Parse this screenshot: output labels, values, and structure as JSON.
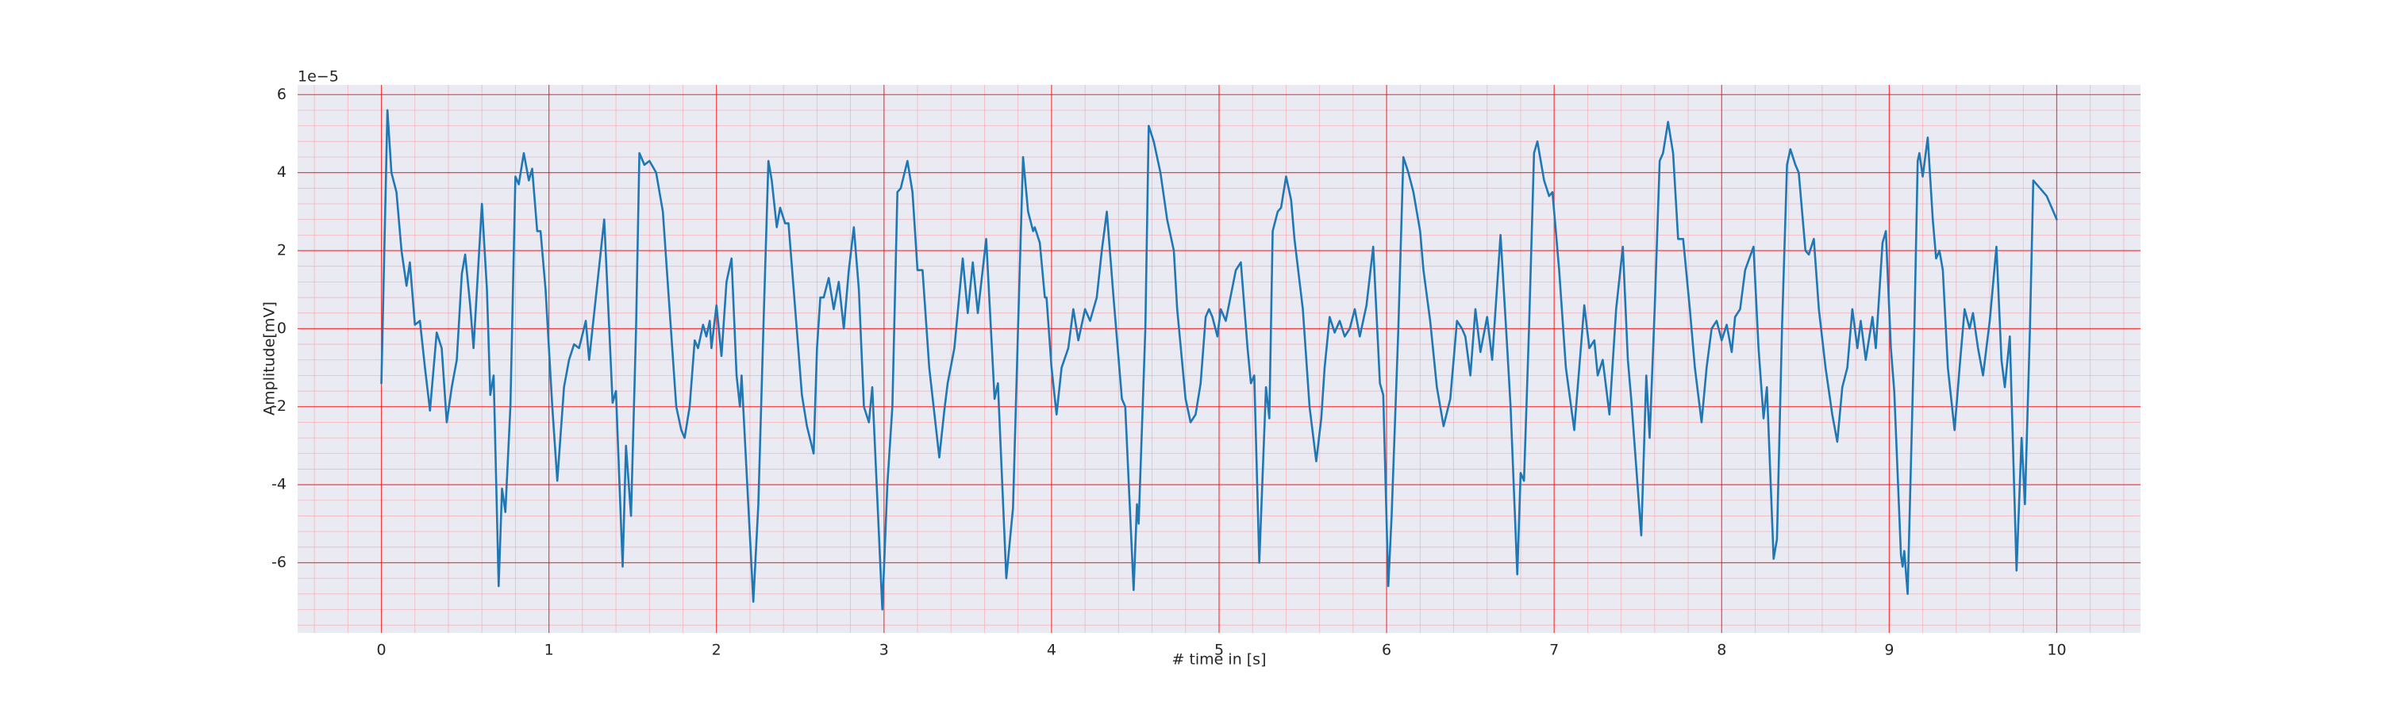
{
  "chart_data": {
    "type": "line",
    "y_offset_label": "1e−5",
    "xlabel": "# time in [s]",
    "ylabel": "Amplitude[mV]",
    "color": "#1f77b4",
    "grid": true,
    "minor_grid": true,
    "xlim": [
      -0.5,
      10.5
    ],
    "ylim": [
      -7.8,
      6.25
    ],
    "xticks": [
      0,
      1,
      2,
      3,
      4,
      5,
      6,
      7,
      8,
      9,
      10
    ],
    "yticks": [
      -6,
      -4,
      -2,
      0,
      2,
      4,
      6
    ],
    "x": [
      0,
      0.036,
      0.06,
      0.09,
      0.12,
      0.15,
      0.17,
      0.2,
      0.23,
      0.26,
      0.29,
      0.33,
      0.36,
      0.39,
      0.42,
      0.45,
      0.48,
      0.5,
      0.53,
      0.55,
      0.6,
      0.63,
      0.65,
      0.67,
      0.7,
      0.72,
      0.74,
      0.77,
      0.8,
      0.82,
      0.85,
      0.88,
      0.9,
      0.93,
      0.95,
      0.98,
      1.02,
      1.05,
      1.09,
      1.12,
      1.15,
      1.18,
      1.22,
      1.24,
      1.33,
      1.36,
      1.38,
      1.4,
      1.44,
      1.46,
      1.49,
      1.52,
      1.54,
      1.57,
      1.6,
      1.64,
      1.68,
      1.72,
      1.76,
      1.79,
      1.81,
      1.84,
      1.87,
      1.89,
      1.92,
      1.94,
      1.96,
      1.97,
      2,
      2.03,
      2.06,
      2.09,
      2.12,
      2.14,
      2.15,
      2.22,
      2.25,
      2.28,
      2.31,
      2.33,
      2.36,
      2.38,
      2.41,
      2.43,
      2.47,
      2.51,
      2.54,
      2.58,
      2.6,
      2.62,
      2.64,
      2.67,
      2.7,
      2.73,
      2.76,
      2.79,
      2.82,
      2.85,
      2.88,
      2.91,
      2.93,
      2.99,
      3.02,
      3.05,
      3.08,
      3.1,
      3.14,
      3.17,
      3.2,
      3.23,
      3.27,
      3.33,
      3.36,
      3.38,
      3.42,
      3.47,
      3.5,
      3.53,
      3.56,
      3.61,
      3.66,
      3.68,
      3.73,
      3.77,
      3.8,
      3.83,
      3.86,
      3.89,
      3.9,
      3.93,
      3.96,
      3.97,
      4,
      4.03,
      4.06,
      4.1,
      4.13,
      4.16,
      4.2,
      4.23,
      4.27,
      4.3,
      4.33,
      4.37,
      4.42,
      4.44,
      4.49,
      4.51,
      4.52,
      4.56,
      4.58,
      4.61,
      4.65,
      4.69,
      4.73,
      4.75,
      4.8,
      4.83,
      4.86,
      4.89,
      4.92,
      4.94,
      4.96,
      4.99,
      5.01,
      5.04,
      5.1,
      5.13,
      5.17,
      5.19,
      5.21,
      5.24,
      5.28,
      5.3,
      5.32,
      5.35,
      5.37,
      5.4,
      5.43,
      5.45,
      5.5,
      5.54,
      5.58,
      5.61,
      5.63,
      5.66,
      5.69,
      5.72,
      5.75,
      5.78,
      5.81,
      5.84,
      5.88,
      5.92,
      5.96,
      5.98,
      6.01,
      6.03,
      6.07,
      6.1,
      6.13,
      6.16,
      6.2,
      6.22,
      6.26,
      6.3,
      6.34,
      6.38,
      6.42,
      6.45,
      6.47,
      6.5,
      6.53,
      6.56,
      6.6,
      6.63,
      6.68,
      6.72,
      6.74,
      6.78,
      6.8,
      6.82,
      6.85,
      6.88,
      6.9,
      6.94,
      6.97,
      6.99,
      7.03,
      7.07,
      7.12,
      7.15,
      7.18,
      7.21,
      7.24,
      7.26,
      7.29,
      7.33,
      7.37,
      7.41,
      7.44,
      7.46,
      7.52,
      7.55,
      7.57,
      7.6,
      7.63,
      7.65,
      7.68,
      7.71,
      7.74,
      7.77,
      7.81,
      7.84,
      7.88,
      7.91,
      7.94,
      7.97,
      8,
      8.03,
      8.06,
      8.08,
      8.11,
      8.14,
      8.19,
      8.22,
      8.25,
      8.27,
      8.31,
      8.33,
      8.36,
      8.39,
      8.41,
      8.44,
      8.46,
      8.5,
      8.52,
      8.55,
      8.58,
      8.62,
      8.66,
      8.69,
      8.72,
      8.75,
      8.78,
      8.81,
      8.83,
      8.86,
      8.9,
      8.92,
      8.96,
      8.98,
      9.01,
      9.03,
      9.07,
      9.08,
      9.09,
      9.11,
      9.15,
      9.17,
      9.18,
      9.2,
      9.23,
      9.26,
      9.28,
      9.3,
      9.32,
      9.35,
      9.39,
      9.42,
      9.45,
      9.48,
      9.5,
      9.53,
      9.56,
      9.6,
      9.64,
      9.67,
      9.69,
      9.72,
      9.76,
      9.79,
      9.81,
      9.84,
      9.86,
      9.9,
      9.94,
      10
    ],
    "values": [
      -1.4,
      5.6,
      4,
      3.5,
      2,
      1.1,
      1.7,
      0.1,
      0.2,
      -1,
      -2.1,
      -0.1,
      -0.5,
      -2.4,
      -1.5,
      -0.8,
      1.4,
      1.9,
      0.6,
      -0.5,
      3.2,
      1,
      -1.7,
      -1.2,
      -6.6,
      -4.1,
      -4.7,
      -2,
      3.9,
      3.7,
      4.5,
      3.8,
      4.1,
      2.5,
      2.5,
      1,
      -2,
      -3.9,
      -1.5,
      -0.8,
      -0.4,
      -0.5,
      0.2,
      -0.8,
      2.8,
      0,
      -1.9,
      -1.6,
      -6.1,
      -3,
      -4.8,
      0,
      4.5,
      4.2,
      4.3,
      4,
      3,
      0.5,
      -2,
      -2.6,
      -2.8,
      -2,
      -0.3,
      -0.5,
      0.1,
      -0.2,
      0.2,
      -0.5,
      0.6,
      -0.7,
      1.2,
      1.8,
      -1.2,
      -2,
      -1.2,
      -7,
      -4.5,
      0,
      4.3,
      3.8,
      2.6,
      3.1,
      2.7,
      2.7,
      0.5,
      -1.7,
      -2.5,
      -3.2,
      -0.5,
      0.8,
      0.8,
      1.3,
      0.5,
      1.2,
      0,
      1.5,
      2.6,
      1,
      -2,
      -2.4,
      -1.5,
      -7.2,
      -4,
      -2,
      3.5,
      3.6,
      4.3,
      3.5,
      1.5,
      1.5,
      -1,
      -3.3,
      -2.1,
      -1.4,
      -0.5,
      1.8,
      0.4,
      1.7,
      0.4,
      2.3,
      -1.8,
      -1.4,
      -6.4,
      -4.6,
      0,
      4.4,
      3,
      2.5,
      2.6,
      2.2,
      0.8,
      0.8,
      -1,
      -2.2,
      -1,
      -0.5,
      0.5,
      -0.3,
      0.5,
      0.2,
      0.8,
      2,
      3,
      0.8,
      -1.8,
      -2,
      -6.7,
      -4.5,
      -5,
      0,
      5.2,
      4.8,
      4,
      2.8,
      2,
      0.5,
      -1.8,
      -2.4,
      -2.2,
      -1.4,
      0.3,
      0.5,
      0.3,
      -0.2,
      0.5,
      0.2,
      1.5,
      1.7,
      -0.5,
      -1.4,
      -1.2,
      -6,
      -1.5,
      -2.3,
      2.5,
      3,
      3.1,
      3.9,
      3.3,
      2.3,
      0.5,
      -2,
      -3.4,
      -2.3,
      -1,
      0.3,
      -0.1,
      0.2,
      -0.2,
      0,
      0.5,
      -0.2,
      0.6,
      2.1,
      -1.4,
      -1.7,
      -6.6,
      -4.8,
      0,
      4.4,
      4,
      3.5,
      2.5,
      1.5,
      0.2,
      -1.5,
      -2.5,
      -1.8,
      0.2,
      0,
      -0.2,
      -1.2,
      0.5,
      -0.6,
      0.3,
      -0.8,
      2.4,
      -0.5,
      -2,
      -6.3,
      -3.7,
      -3.9,
      0,
      4.5,
      4.8,
      3.8,
      3.4,
      3.5,
      1.5,
      -1,
      -2.6,
      -1,
      0.6,
      -0.5,
      -0.3,
      -1.2,
      -0.8,
      -2.2,
      0.5,
      2.1,
      -0.8,
      -1.8,
      -5.3,
      -1.2,
      -2.8,
      0.5,
      4.3,
      4.5,
      5.3,
      4.5,
      2.3,
      2.3,
      0.5,
      -1,
      -2.4,
      -1,
      0,
      0.2,
      -0.3,
      0.1,
      -0.6,
      0.3,
      0.5,
      1.5,
      2.1,
      -0.5,
      -2.3,
      -1.5,
      -5.9,
      -5.4,
      0,
      4.2,
      4.6,
      4.2,
      4,
      2,
      1.9,
      2.3,
      0.5,
      -1,
      -2.2,
      -2.9,
      -1.5,
      -1,
      0.5,
      -0.5,
      0.2,
      -0.8,
      0.3,
      -0.5,
      2.2,
      2.5,
      -0.5,
      -1.6,
      -5.8,
      -6.1,
      -5.7,
      -6.8,
      0,
      4.3,
      4.5,
      3.9,
      4.9,
      2.8,
      1.8,
      2,
      1.5,
      -1,
      -2.6,
      -1,
      0.5,
      0,
      0.4,
      -0.5,
      -1.2,
      0.2,
      2.1,
      -0.8,
      -1.5,
      -0.2,
      -6.2,
      -2.8,
      -4.5,
      0,
      3.8,
      3.6,
      3.4,
      2.8
    ]
  }
}
